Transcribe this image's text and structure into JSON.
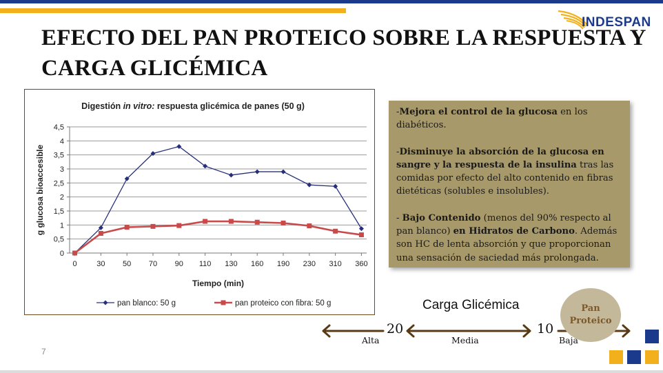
{
  "brand": {
    "name": "INDESPAN",
    "blue": "#1b3a8c",
    "gold": "#f2b11c"
  },
  "slide": {
    "title": "EFECTO DEL PAN PROTEICO SOBRE LA RESPUESTA Y CARGA GLICÉMICA",
    "page_number": "7"
  },
  "chart_data": {
    "type": "line",
    "title": "Digestión in vitro: respuesta glicémica de panes (50 g)",
    "title_parts": {
      "prefix": "Digestión ",
      "italic": "in vitro:",
      "suffix": " respuesta glicémica de panes (50 g)"
    },
    "xlabel": "Tiempo (min)",
    "ylabel": "g glucosa bioaccesible",
    "categories": [
      "0",
      "30",
      "50",
      "70",
      "90",
      "110",
      "130",
      "160",
      "190",
      "230",
      "310",
      "360"
    ],
    "y_ticks": [
      "0",
      "0,5",
      "1",
      "1,5",
      "2",
      "2,5",
      "3",
      "3,5",
      "4",
      "4,5"
    ],
    "ylim": [
      0,
      4.5
    ],
    "grid": true,
    "legend_position": "bottom",
    "series": [
      {
        "name": "pan blanco: 50 g",
        "color": "#26307a",
        "marker": "diamond",
        "values": [
          0,
          0.9,
          2.65,
          3.55,
          3.8,
          3.1,
          2.78,
          2.9,
          2.9,
          2.43,
          2.38,
          0.87
        ]
      },
      {
        "name": "pan proteico con  fibra: 50 g",
        "color": "#c84a4a",
        "marker": "square",
        "values": [
          0,
          0.7,
          0.92,
          0.95,
          0.98,
          1.13,
          1.13,
          1.1,
          1.07,
          0.97,
          0.78,
          0.65
        ]
      }
    ]
  },
  "info": {
    "p1": {
      "pre": "-",
      "bold": "Mejora el control de la glucosa",
      "rest": " en los diabéticos."
    },
    "p2": {
      "pre": "-",
      "bold": "Disminuye  la absorción de la glucosa en sangre y la respuesta de la insulina",
      "rest": " tras las comidas por efecto del alto contenido en fibras dietéticas (solubles e insolubles)."
    },
    "p3": {
      "pre": "- ",
      "bold1": "Bajo Contenido",
      "mid": " (menos del 90% respecto al pan blanco) ",
      "bold2": "en Hidratos de Carbono",
      "rest": ". Además son HC de lenta absorción y que proporcionan una sensación de saciedad más prolongada."
    }
  },
  "carga": {
    "title": "Carga Glicémica",
    "value_high": "20",
    "value_low": "10",
    "label_alta": "Alta",
    "label_media": "Media",
    "label_baja": "Baja",
    "arrow_color": "#5a3a14",
    "pan_line1": "Pan",
    "pan_line2": "Proteico"
  }
}
